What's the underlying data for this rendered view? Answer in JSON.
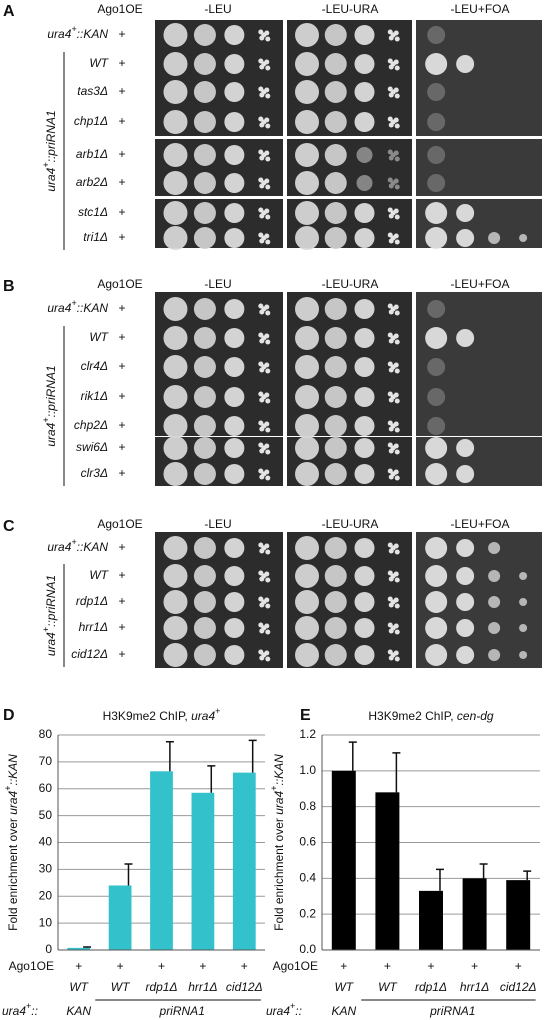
{
  "panels": [
    {
      "letter": "A",
      "headers": [
        "Ago1OE",
        "-LEU",
        "-LEU-URA",
        "-LEU+FOA"
      ],
      "group_label": [
        {
          "text": "ura4"
        },
        {
          "text": "+",
          "sup": true
        },
        {
          "text": "::priRNA1"
        }
      ],
      "rows": [
        {
          "label": [
            {
              "text": "ura4"
            },
            {
              "text": "+",
              "sup": true
            },
            {
              "text": "::KAN"
            }
          ],
          "ago": "+"
        },
        {
          "label": "WT",
          "ago": "+"
        },
        {
          "label": "tas3Δ",
          "ago": "+"
        },
        {
          "label": "chp1Δ",
          "ago": "+"
        },
        {
          "label": "arb1Δ",
          "ago": "+"
        },
        {
          "label": "arb2Δ",
          "ago": "+"
        },
        {
          "label": "stc1Δ",
          "ago": "+"
        },
        {
          "label": "tri1Δ",
          "ago": "+"
        }
      ]
    },
    {
      "letter": "B",
      "headers": [
        "Ago1OE",
        "-LEU",
        "-LEU-URA",
        "-LEU+FOA"
      ],
      "group_label": [
        {
          "text": "ura4"
        },
        {
          "text": "+",
          "sup": true
        },
        {
          "text": "::priRNA1"
        }
      ],
      "rows": [
        {
          "label": [
            {
              "text": "ura4"
            },
            {
              "text": "+",
              "sup": true
            },
            {
              "text": "::KAN"
            }
          ],
          "ago": "+"
        },
        {
          "label": "WT",
          "ago": "+"
        },
        {
          "label": "clr4Δ",
          "ago": "+"
        },
        {
          "label": "rik1Δ",
          "ago": "+"
        },
        {
          "label": "chp2Δ",
          "ago": "+"
        },
        {
          "label": "swi6Δ",
          "ago": "+"
        },
        {
          "label": "clr3Δ",
          "ago": "+"
        }
      ]
    },
    {
      "letter": "C",
      "headers": [
        "Ago1OE",
        "-LEU",
        "-LEU-URA",
        "-LEU+FOA"
      ],
      "group_label": [
        {
          "text": "ura4"
        },
        {
          "text": "+",
          "sup": true
        },
        {
          "text": "::priRNA1"
        }
      ],
      "rows": [
        {
          "label": [
            {
              "text": "ura4"
            },
            {
              "text": "+",
              "sup": true
            },
            {
              "text": "::KAN"
            }
          ],
          "ago": "+"
        },
        {
          "label": "WT",
          "ago": "+"
        },
        {
          "label": "rdp1Δ",
          "ago": "+"
        },
        {
          "label": "hrr1Δ",
          "ago": "+"
        },
        {
          "label": "cid12Δ",
          "ago": "+"
        }
      ]
    }
  ],
  "chart_data": [
    {
      "type": "bar",
      "panel": "D",
      "title": [
        {
          "text": "H3K9me2 ChIP, "
        },
        {
          "text": "ura4",
          "italic": true
        },
        {
          "text": "+",
          "sup": true
        }
      ],
      "y_label": [
        {
          "text": "Fold enrichment over "
        },
        {
          "text": "ura4",
          "italic": true
        },
        {
          "text": "+",
          "sup": true
        },
        {
          "text": "::KAN",
          "italic": true
        }
      ],
      "categories": [
        "WT",
        "WT",
        "rdp1Δ",
        "hrr1Δ",
        "cid12Δ"
      ],
      "series": [
        {
          "color": "#33c2cc",
          "values": [
            0.8,
            24,
            66.5,
            58.5,
            66
          ],
          "errors": [
            0.3,
            8,
            11,
            10,
            12
          ]
        }
      ],
      "ylim": [
        0,
        80
      ],
      "yticks": [
        0,
        10,
        20,
        30,
        40,
        50,
        60,
        70,
        80
      ],
      "grid": true,
      "ago_row": {
        "label": "Ago1OE",
        "values": [
          "+",
          "+",
          "+",
          "+",
          "+"
        ]
      },
      "strain_row": {
        "label": [
          {
            "text": "ura4",
            "italic": true
          },
          {
            "text": "+",
            "sup": true
          },
          {
            "text": "::",
            "italic": true
          }
        ],
        "groups": [
          "KAN",
          "priRNA1"
        ]
      }
    },
    {
      "type": "bar",
      "panel": "E",
      "title": [
        {
          "text": "H3K9me2 ChIP, "
        },
        {
          "text": "cen-dg",
          "italic": true
        }
      ],
      "y_label": [
        {
          "text": "Fold enrichment over "
        },
        {
          "text": "ura4",
          "italic": true
        },
        {
          "text": "+",
          "sup": true
        },
        {
          "text": "::KAN",
          "italic": true
        }
      ],
      "categories": [
        "WT",
        "WT",
        "rdp1Δ",
        "hrr1Δ",
        "cid12Δ"
      ],
      "series": [
        {
          "color": "#000000",
          "values": [
            1.0,
            0.88,
            0.33,
            0.4,
            0.39
          ],
          "errors": [
            0.16,
            0.22,
            0.12,
            0.08,
            0.05
          ]
        }
      ],
      "ylim": [
        0,
        1.2
      ],
      "yticks": [
        {
          "value": 0,
          "label": "0.0"
        },
        0.2,
        0.4,
        0.6,
        0.8,
        {
          "value": 1,
          "label": "1.0"
        },
        1.2
      ],
      "grid": true,
      "ago_row": {
        "label": "Ago1OE",
        "values": [
          "+",
          "+",
          "+",
          "+",
          "+"
        ]
      },
      "strain_row": {
        "label": [
          {
            "text": "ura4",
            "italic": true
          },
          {
            "text": "+",
            "sup": true
          },
          {
            "text": "::",
            "italic": true
          }
        ],
        "groups": [
          "KAN",
          "priRNA1"
        ]
      }
    }
  ]
}
